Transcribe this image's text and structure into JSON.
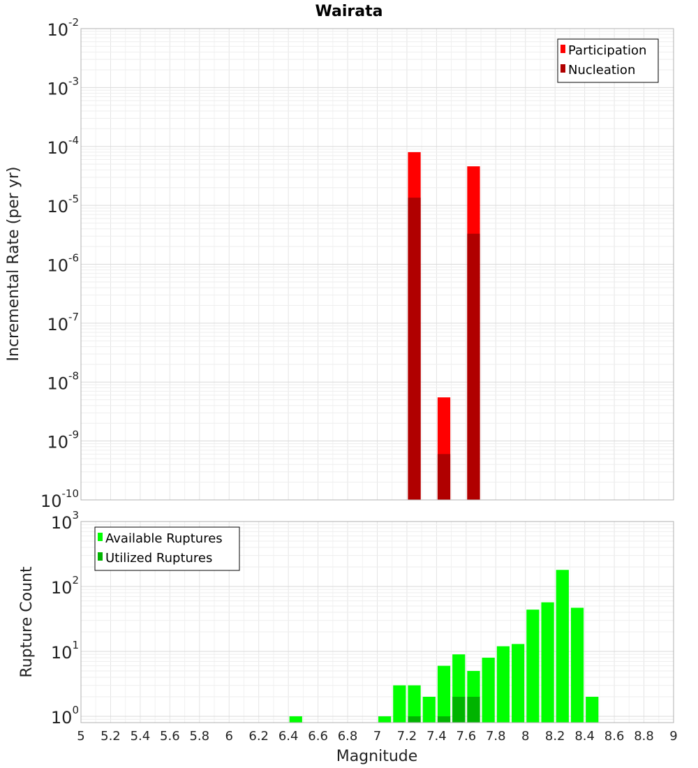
{
  "chart_data": [
    {
      "type": "bar",
      "title": "Wairata",
      "ylabel": "Incremental Rate (per yr)",
      "xlabel": "",
      "y_scale": "log",
      "ylim": [
        1e-10,
        0.01
      ],
      "xlim": [
        5,
        9
      ],
      "y_ticks": [
        {
          "base": "10",
          "exp": "-10",
          "value": 1e-10
        },
        {
          "base": "10",
          "exp": "-9",
          "value": 1e-09
        },
        {
          "base": "10",
          "exp": "-8",
          "value": 1e-08
        },
        {
          "base": "10",
          "exp": "-7",
          "value": 1e-07
        },
        {
          "base": "10",
          "exp": "-6",
          "value": 1e-06
        },
        {
          "base": "10",
          "exp": "-5",
          "value": 1e-05
        },
        {
          "base": "10",
          "exp": "-4",
          "value": 0.0001
        },
        {
          "base": "10",
          "exp": "-3",
          "value": 0.001
        },
        {
          "base": "10",
          "exp": "-2",
          "value": 0.01
        }
      ],
      "grid": true,
      "legend_position": "top-right",
      "series": [
        {
          "name": "Participation",
          "color": "#ff0000",
          "x": [
            7.25,
            7.45,
            7.65
          ],
          "values": [
            8e-05,
            5.5e-09,
            4.6e-05
          ]
        },
        {
          "name": "Nucleation",
          "color": "#b00000",
          "x": [
            7.25,
            7.45,
            7.65
          ],
          "values": [
            1.35e-05,
            6e-10,
            3.3e-06
          ]
        }
      ]
    },
    {
      "type": "bar",
      "title": "",
      "ylabel": "Rupture Count",
      "xlabel": "Magnitude",
      "y_scale": "log",
      "ylim": [
        0.8,
        1000
      ],
      "xlim": [
        5,
        9
      ],
      "x_ticks": [
        "5",
        "5.2",
        "5.4",
        "5.6",
        "5.8",
        "6",
        "6.2",
        "6.4",
        "6.6",
        "6.8",
        "7",
        "7.2",
        "7.4",
        "7.6",
        "7.8",
        "8",
        "8.2",
        "8.4",
        "8.6",
        "8.8",
        "9"
      ],
      "y_ticks": [
        {
          "base": "10",
          "exp": "0",
          "value": 1
        },
        {
          "base": "10",
          "exp": "1",
          "value": 10
        },
        {
          "base": "10",
          "exp": "2",
          "value": 100
        },
        {
          "base": "10",
          "exp": "3",
          "value": 1000
        }
      ],
      "grid": true,
      "legend_position": "top-left",
      "series": [
        {
          "name": "Available Ruptures",
          "color": "#00ff00",
          "x": [
            6.45,
            7.05,
            7.15,
            7.25,
            7.35,
            7.45,
            7.55,
            7.65,
            7.75,
            7.85,
            7.95,
            8.05,
            8.15,
            8.25,
            8.35,
            8.45
          ],
          "values": [
            1,
            1,
            3,
            3,
            2,
            6,
            9,
            5,
            8,
            12,
            13,
            44,
            57,
            180,
            47,
            2
          ]
        },
        {
          "name": "Utilized Ruptures",
          "color": "#00b400",
          "x": [
            7.25,
            7.45,
            7.55,
            7.65
          ],
          "values": [
            1,
            1,
            2,
            2
          ]
        }
      ]
    }
  ]
}
